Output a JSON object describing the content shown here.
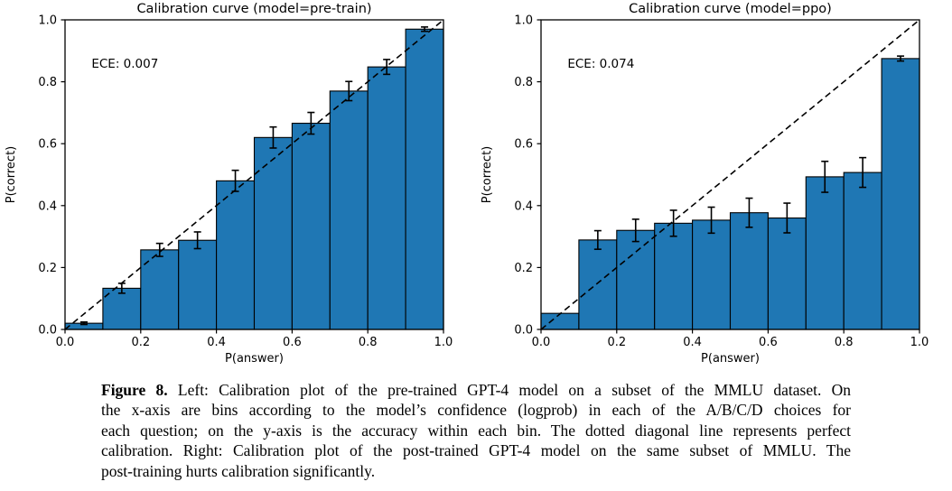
{
  "page": {
    "background": "#ffffff"
  },
  "caption": {
    "label": "Figure 8.",
    "lines": [
      "Left: Calibration plot of the pre-trained GPT-4 model on a subset of the MMLU dataset. On",
      "the x-axis are bins according to the model’s confidence (logprob) in each of the A/B/C/D choices for",
      "each question; on the y-axis is the accuracy within each bin. The dotted diagonal line represents perfect",
      "calibration. Right: Calibration plot of the post-trained GPT-4 model on the same subset of MMLU. The",
      "post-training hurts calibration significantly."
    ]
  },
  "chart_data": [
    {
      "type": "bar",
      "title": "Calibration curve (model=pre-train)",
      "annotation": "ECE: 0.007",
      "xlabel": "P(answer)",
      "ylabel": "P(correct)",
      "xlim": [
        0.0,
        1.0
      ],
      "ylim": [
        0.0,
        1.0
      ],
      "xticks": [
        "0.0",
        "0.2",
        "0.4",
        "0.6",
        "0.8",
        "1.0"
      ],
      "yticks": [
        "0.0",
        "0.2",
        "0.4",
        "0.6",
        "0.8",
        "1.0"
      ],
      "bin_edges": [
        0.0,
        0.1,
        0.2,
        0.3,
        0.4,
        0.5,
        0.6,
        0.7,
        0.8,
        0.9,
        1.0
      ],
      "values": [
        0.02,
        0.133,
        0.257,
        0.288,
        0.48,
        0.62,
        0.666,
        0.77,
        0.848,
        0.97
      ],
      "errors": [
        0.004,
        0.016,
        0.021,
        0.027,
        0.034,
        0.034,
        0.035,
        0.031,
        0.024,
        0.007
      ],
      "diagonal": true,
      "grid": false,
      "legend": "none",
      "bar_fill": "#1f77b4",
      "bar_edge": "#000000",
      "text_color": "#000000"
    },
    {
      "type": "bar",
      "title": "Calibration curve (model=ppo)",
      "annotation": "ECE: 0.074",
      "xlabel": "P(answer)",
      "ylabel": "P(correct)",
      "xlim": [
        0.0,
        1.0
      ],
      "ylim": [
        0.0,
        1.0
      ],
      "xticks": [
        "0.0",
        "0.2",
        "0.4",
        "0.6",
        "0.8",
        "1.0"
      ],
      "yticks": [
        "0.0",
        "0.2",
        "0.4",
        "0.6",
        "0.8",
        "1.0"
      ],
      "bin_edges": [
        0.0,
        0.1,
        0.2,
        0.3,
        0.4,
        0.5,
        0.6,
        0.7,
        0.8,
        0.9,
        1.0
      ],
      "values": [
        0.052,
        0.289,
        0.32,
        0.343,
        0.353,
        0.377,
        0.36,
        0.493,
        0.507,
        0.875
      ],
      "errors": [
        0.0,
        0.03,
        0.036,
        0.042,
        0.042,
        0.047,
        0.048,
        0.05,
        0.048,
        0.008
      ],
      "diagonal": true,
      "grid": false,
      "legend": "none",
      "bar_fill": "#1f77b4",
      "bar_edge": "#000000",
      "text_color": "#000000"
    }
  ]
}
